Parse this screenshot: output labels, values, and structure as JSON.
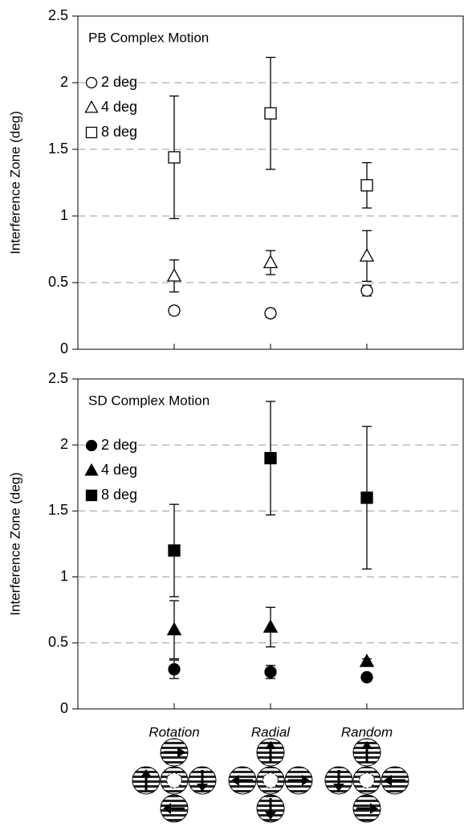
{
  "chart_data": [
    {
      "type": "scatter",
      "title": "PB Complex Motion",
      "y_label": "Interference Zone (deg)",
      "ylim": [
        0,
        2.5
      ],
      "yticks": [
        0,
        0.5,
        1,
        1.5,
        2,
        2.5
      ],
      "grid": true,
      "legend": "upper left",
      "series": [
        {
          "name": "2 deg",
          "color": "#000000",
          "marker": "circle",
          "filled": false,
          "values": [
            0.29,
            0.27,
            0.44
          ],
          "errors": [
            0.03,
            0.03,
            0.04
          ]
        },
        {
          "name": "4 deg",
          "color": "#000000",
          "marker": "triangle",
          "filled": false,
          "values": [
            0.55,
            0.65,
            0.7
          ],
          "errors": [
            0.12,
            0.09,
            0.19
          ]
        },
        {
          "name": "8 deg",
          "color": "#000000",
          "marker": "square",
          "filled": false,
          "values": [
            1.44,
            1.77,
            1.23
          ],
          "errors": [
            0.46,
            0.42,
            0.17
          ]
        }
      ]
    },
    {
      "type": "scatter",
      "title": "SD Complex Motion",
      "y_label": "Interference Zone (deg)",
      "categories": [
        "Rotation",
        "Radial",
        "Random"
      ],
      "ylim": [
        0,
        2.5
      ],
      "yticks": [
        0,
        0.5,
        1,
        1.5,
        2,
        2.5
      ],
      "grid": true,
      "legend": "upper left",
      "series": [
        {
          "name": "2 deg",
          "color": "#000000",
          "marker": "circle",
          "filled": true,
          "values": [
            0.3,
            0.28,
            0.24
          ],
          "errors": [
            0.07,
            0.05,
            0.02
          ]
        },
        {
          "name": "4 deg",
          "color": "#000000",
          "marker": "triangle",
          "filled": true,
          "values": [
            0.6,
            0.62,
            0.36
          ],
          "errors": [
            0.22,
            0.15,
            0.02
          ]
        },
        {
          "name": "8 deg",
          "color": "#000000",
          "marker": "square",
          "filled": true,
          "values": [
            1.2,
            1.9,
            1.6
          ],
          "errors": [
            0.35,
            0.43,
            0.54
          ]
        }
      ]
    }
  ]
}
